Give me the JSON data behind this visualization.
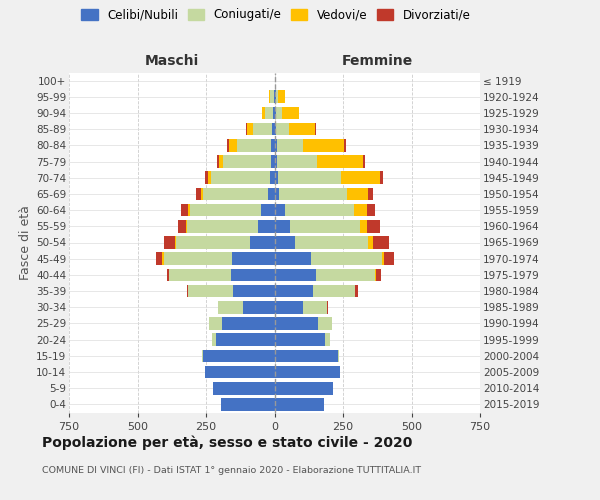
{
  "age_groups": [
    "0-4",
    "5-9",
    "10-14",
    "15-19",
    "20-24",
    "25-29",
    "30-34",
    "35-39",
    "40-44",
    "45-49",
    "50-54",
    "55-59",
    "60-64",
    "65-69",
    "70-74",
    "75-79",
    "80-84",
    "85-89",
    "90-94",
    "95-99",
    "100+"
  ],
  "birth_years": [
    "2015-2019",
    "2010-2014",
    "2005-2009",
    "2000-2004",
    "1995-1999",
    "1990-1994",
    "1985-1989",
    "1980-1984",
    "1975-1979",
    "1970-1974",
    "1965-1969",
    "1960-1964",
    "1955-1959",
    "1950-1954",
    "1945-1949",
    "1940-1944",
    "1935-1939",
    "1930-1934",
    "1925-1929",
    "1920-1924",
    "≤ 1919"
  ],
  "male_celibe": [
    195,
    225,
    255,
    260,
    215,
    190,
    115,
    150,
    160,
    155,
    90,
    60,
    50,
    22,
    18,
    12,
    12,
    8,
    5,
    3,
    0
  ],
  "male_coniugato": [
    0,
    0,
    0,
    4,
    12,
    48,
    90,
    165,
    225,
    250,
    270,
    260,
    260,
    240,
    215,
    175,
    125,
    70,
    30,
    12,
    0
  ],
  "male_vedovo": [
    0,
    0,
    0,
    0,
    0,
    0,
    0,
    0,
    0,
    4,
    4,
    4,
    4,
    8,
    8,
    14,
    28,
    22,
    12,
    4,
    0
  ],
  "male_divorziato": [
    0,
    0,
    0,
    0,
    0,
    0,
    0,
    4,
    8,
    22,
    38,
    28,
    28,
    18,
    12,
    8,
    8,
    4,
    0,
    0,
    0
  ],
  "female_celibe": [
    180,
    215,
    240,
    230,
    185,
    160,
    105,
    140,
    150,
    135,
    75,
    55,
    38,
    18,
    12,
    8,
    8,
    4,
    4,
    4,
    0
  ],
  "female_coniugato": [
    0,
    0,
    0,
    4,
    18,
    50,
    85,
    155,
    215,
    258,
    268,
    258,
    252,
    248,
    232,
    148,
    95,
    50,
    22,
    8,
    0
  ],
  "female_vedovo": [
    0,
    0,
    0,
    0,
    0,
    0,
    0,
    0,
    4,
    8,
    18,
    26,
    46,
    75,
    140,
    168,
    150,
    95,
    62,
    28,
    0
  ],
  "female_divorziato": [
    0,
    0,
    0,
    0,
    0,
    0,
    4,
    8,
    18,
    36,
    56,
    46,
    32,
    18,
    12,
    8,
    8,
    4,
    0,
    0,
    0
  ],
  "color_celibe": "#4472c4",
  "color_coniugato": "#c5d9a0",
  "color_vedovo": "#ffc000",
  "color_divorziato": "#c0392b",
  "xlim": 750,
  "title": "Popolazione per età, sesso e stato civile - 2020",
  "subtitle": "COMUNE DI VINCI (FI) - Dati ISTAT 1° gennaio 2020 - Elaborazione TUTTITALIA.IT",
  "ylabel_left": "Fasce di età",
  "xlabel_maschi": "Maschi",
  "xlabel_femmine": "Femmine",
  "bg_color": "#f0f0f0",
  "plot_bg_color": "#ffffff"
}
